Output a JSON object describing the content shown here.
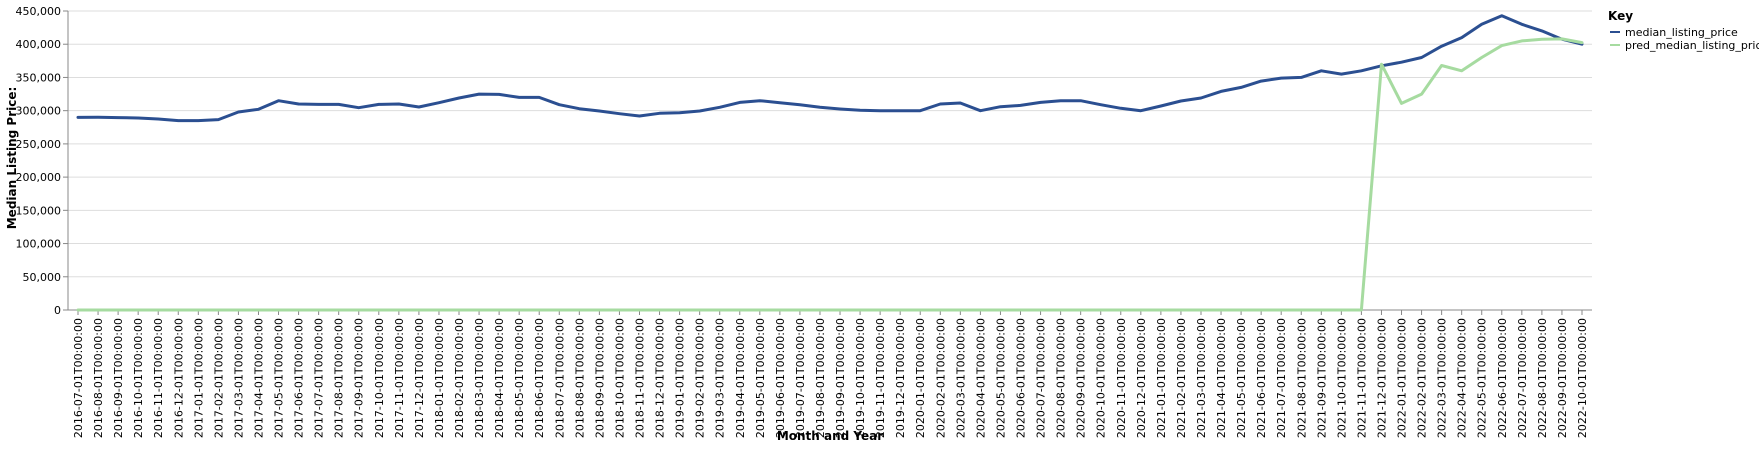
{
  "chart_data": {
    "type": "line",
    "xlabel": "Month and Year",
    "ylabel": "Median Listing Price:",
    "ylim": [
      0,
      450000
    ],
    "y_ticks": [
      0,
      50000,
      100000,
      150000,
      200000,
      250000,
      300000,
      350000,
      400000,
      450000
    ],
    "y_tick_labels": [
      "0",
      "50,000",
      "100,000",
      "150,000",
      "200,000",
      "250,000",
      "300,000",
      "350,000",
      "400,000",
      "450,000"
    ],
    "grid": true,
    "legend": {
      "title": "Key",
      "placement": "top-right"
    },
    "x": [
      "2016-07-01T00:00:00",
      "2016-08-01T00:00:00",
      "2016-09-01T00:00:00",
      "2016-10-01T00:00:00",
      "2016-11-01T00:00:00",
      "2016-12-01T00:00:00",
      "2017-01-01T00:00:00",
      "2017-02-01T00:00:00",
      "2017-03-01T00:00:00",
      "2017-04-01T00:00:00",
      "2017-05-01T00:00:00",
      "2017-06-01T00:00:00",
      "2017-07-01T00:00:00",
      "2017-08-01T00:00:00",
      "2017-09-01T00:00:00",
      "2017-10-01T00:00:00",
      "2017-11-01T00:00:00",
      "2017-12-01T00:00:00",
      "2018-01-01T00:00:00",
      "2018-02-01T00:00:00",
      "2018-03-01T00:00:00",
      "2018-04-01T00:00:00",
      "2018-05-01T00:00:00",
      "2018-06-01T00:00:00",
      "2018-07-01T00:00:00",
      "2018-08-01T00:00:00",
      "2018-09-01T00:00:00",
      "2018-10-01T00:00:00",
      "2018-11-01T00:00:00",
      "2018-12-01T00:00:00",
      "2019-01-01T00:00:00",
      "2019-02-01T00:00:00",
      "2019-03-01T00:00:00",
      "2019-04-01T00:00:00",
      "2019-05-01T00:00:00",
      "2019-06-01T00:00:00",
      "2019-07-01T00:00:00",
      "2019-08-01T00:00:00",
      "2019-09-01T00:00:00",
      "2019-10-01T00:00:00",
      "2019-11-01T00:00:00",
      "2019-12-01T00:00:00",
      "2020-01-01T00:00:00",
      "2020-02-01T00:00:00",
      "2020-03-01T00:00:00",
      "2020-04-01T00:00:00",
      "2020-05-01T00:00:00",
      "2020-06-01T00:00:00",
      "2020-07-01T00:00:00",
      "2020-08-01T00:00:00",
      "2020-09-01T00:00:00",
      "2020-10-01T00:00:00",
      "2020-11-01T00:00:00",
      "2020-12-01T00:00:00",
      "2021-01-01T00:00:00",
      "2021-02-01T00:00:00",
      "2021-03-01T00:00:00",
      "2021-04-01T00:00:00",
      "2021-05-01T00:00:00",
      "2021-06-01T00:00:00",
      "2021-07-01T00:00:00",
      "2021-08-01T00:00:00",
      "2021-09-01T00:00:00",
      "2021-10-01T00:00:00",
      "2021-11-01T00:00:00",
      "2021-12-01T00:00:00",
      "2022-01-01T00:00:00",
      "2022-02-01T00:00:00",
      "2022-03-01T00:00:00",
      "2022-04-01T00:00:00",
      "2022-05-01T00:00:00",
      "2022-06-01T00:00:00",
      "2022-07-01T00:00:00",
      "2022-08-01T00:00:00",
      "2022-09-01T00:00:00",
      "2022-10-01T00:00:00"
    ],
    "series": [
      {
        "name": "median_listing_price",
        "color": "#2b4f91",
        "values": [
          289900,
          290000,
          289500,
          289000,
          287500,
          285000,
          285000,
          286500,
          298000,
          302000,
          315000,
          310000,
          309500,
          309500,
          304500,
          309500,
          310000,
          305500,
          312000,
          319000,
          325000,
          324500,
          320000,
          320000,
          309000,
          303000,
          299500,
          295500,
          292000,
          296000,
          297000,
          299500,
          305000,
          312500,
          315000,
          312000,
          309000,
          305000,
          302500,
          300500,
          300000,
          300000,
          300000,
          310000,
          311500,
          300000,
          306000,
          308000,
          312500,
          315000,
          315000,
          309000,
          303500,
          300000,
          307000,
          314500,
          319000,
          329000,
          335000,
          344500,
          349000,
          350000,
          360000,
          355000,
          360000,
          367500,
          373000,
          380000,
          397000,
          410000,
          430000,
          443000,
          430000,
          420000,
          407500,
          400000
        ]
      },
      {
        "name": "pred_median_listing_price",
        "color": "#a6dba0",
        "values": [
          0,
          0,
          0,
          0,
          0,
          0,
          0,
          0,
          0,
          0,
          0,
          0,
          0,
          0,
          0,
          0,
          0,
          0,
          0,
          0,
          0,
          0,
          0,
          0,
          0,
          0,
          0,
          0,
          0,
          0,
          0,
          0,
          0,
          0,
          0,
          0,
          0,
          0,
          0,
          0,
          0,
          0,
          0,
          0,
          0,
          0,
          0,
          0,
          0,
          0,
          0,
          0,
          0,
          0,
          0,
          0,
          0,
          0,
          0,
          0,
          0,
          0,
          0,
          0,
          0,
          370000,
          311000,
          325000,
          368000,
          360000,
          380000,
          398000,
          405000,
          407500,
          408000,
          402500
        ]
      }
    ]
  }
}
